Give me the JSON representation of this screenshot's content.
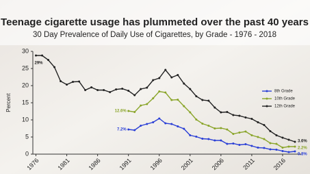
{
  "chart_data": {
    "type": "line",
    "title": "Teenage cigarette usage has plummeted over the past 40 years",
    "subtitle": "30 Day Prevalence of Daily Use of Cigarettes, by Grade - 1976 - 2018",
    "y_label": "Percent",
    "x": [
      1976,
      1977,
      1978,
      1979,
      1980,
      1981,
      1982,
      1983,
      1984,
      1985,
      1986,
      1987,
      1988,
      1989,
      1990,
      1991,
      1992,
      1993,
      1994,
      1995,
      1996,
      1997,
      1998,
      1999,
      2000,
      2001,
      2002,
      2003,
      2004,
      2005,
      2006,
      2007,
      2008,
      2009,
      2010,
      2011,
      2012,
      2013,
      2014,
      2015,
      2016,
      2017,
      2018
    ],
    "series": [
      {
        "name": "8th Grade",
        "color": "#2a3fd6",
        "values": [
          null,
          null,
          null,
          null,
          null,
          null,
          null,
          null,
          null,
          null,
          null,
          null,
          null,
          null,
          null,
          7.2,
          7.0,
          8.3,
          8.8,
          9.3,
          10.4,
          9.0,
          8.8,
          8.1,
          7.4,
          5.5,
          5.1,
          4.5,
          4.4,
          4.0,
          4.0,
          3.0,
          3.1,
          2.7,
          2.9,
          2.4,
          1.9,
          1.8,
          1.4,
          1.3,
          0.9,
          0.6,
          0.8
        ],
        "value_labels": [
          null,
          null,
          null,
          null,
          null,
          null,
          null,
          null,
          null,
          null,
          null,
          null,
          null,
          null,
          null,
          "7.2%",
          null,
          null,
          null,
          null,
          null,
          null,
          null,
          null,
          null,
          null,
          null,
          null,
          null,
          null,
          null,
          null,
          null,
          null,
          null,
          null,
          null,
          null,
          null,
          null,
          null,
          null,
          "0.8%"
        ]
      },
      {
        "name": "10th Grade",
        "color": "#8aa52a",
        "values": [
          null,
          null,
          null,
          null,
          null,
          null,
          null,
          null,
          null,
          null,
          null,
          null,
          null,
          null,
          null,
          12.6,
          12.3,
          14.2,
          14.6,
          16.3,
          18.3,
          18.0,
          15.8,
          15.9,
          14.0,
          12.2,
          10.1,
          8.9,
          8.3,
          7.5,
          7.6,
          7.2,
          5.9,
          6.3,
          6.6,
          5.5,
          5.0,
          4.4,
          3.2,
          3.0,
          1.9,
          2.2,
          2.2
        ],
        "value_labels": [
          null,
          null,
          null,
          null,
          null,
          null,
          null,
          null,
          null,
          null,
          null,
          null,
          null,
          null,
          null,
          "12.6%",
          null,
          null,
          null,
          null,
          null,
          null,
          null,
          null,
          null,
          null,
          null,
          null,
          null,
          null,
          null,
          null,
          null,
          null,
          null,
          null,
          null,
          null,
          null,
          null,
          null,
          null,
          "2.2%"
        ]
      },
      {
        "name": "12th Grade",
        "color": "#222222",
        "values": [
          28.8,
          28.8,
          27.5,
          25.4,
          21.3,
          20.3,
          21.1,
          21.2,
          18.7,
          19.5,
          18.7,
          18.7,
          18.1,
          18.9,
          19.1,
          18.5,
          17.2,
          19.0,
          19.4,
          21.6,
          22.2,
          24.6,
          22.4,
          23.1,
          20.6,
          19.0,
          16.9,
          15.8,
          15.6,
          13.6,
          12.2,
          12.3,
          11.4,
          11.2,
          10.7,
          10.3,
          9.3,
          8.5,
          6.7,
          5.5,
          4.8,
          4.2,
          3.6
        ],
        "value_labels": [
          "29%",
          null,
          null,
          null,
          null,
          null,
          null,
          null,
          null,
          null,
          null,
          null,
          null,
          null,
          null,
          null,
          null,
          null,
          null,
          null,
          null,
          null,
          null,
          null,
          null,
          null,
          null,
          null,
          null,
          null,
          null,
          null,
          null,
          null,
          null,
          null,
          null,
          null,
          null,
          null,
          null,
          null,
          "3.6%"
        ]
      }
    ],
    "xlim": [
      1975.5,
      2019
    ],
    "xticks": [
      1976,
      1981,
      1986,
      1991,
      1996,
      2001,
      2006,
      2011,
      2016
    ],
    "ylim": [
      0,
      30
    ],
    "yticks": [
      0,
      5,
      10,
      15,
      20,
      25,
      30
    ],
    "legend": "right"
  }
}
